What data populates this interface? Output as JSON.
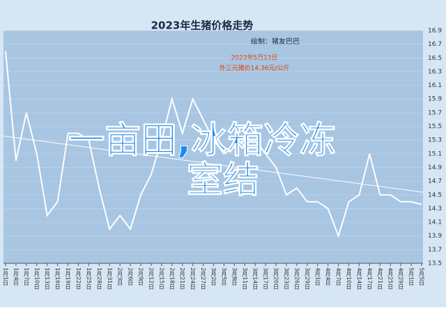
{
  "chart_data": {
    "type": "line",
    "title": "2023年生猪价格走势",
    "subtitle": "绘制：猪友巴巴",
    "annotation": [
      "2023年5月13日",
      "外三元猪价14.36元/公斤"
    ],
    "overlay": [
      "一亩田,冰箱冷冻",
      "室结"
    ],
    "categories": [
      "1月1日",
      "1月4日",
      "1月7日",
      "1月10日",
      "1月13日",
      "1月16日",
      "1月19日",
      "1月22日",
      "1月25日",
      "1月28日",
      "1月31日",
      "2月3日",
      "2月6日",
      "2月9日",
      "2月12日",
      "2月15日",
      "2月18日",
      "2月21日",
      "2月24日",
      "2月27日",
      "3月2日",
      "3月5日",
      "3月8日",
      "3月11日",
      "3月14日",
      "3月17日",
      "3月20日",
      "3月23日",
      "3月26日",
      "3月29日",
      "4月1日",
      "4月4日",
      "4月7日",
      "4月10日",
      "4月14日",
      "4月17日",
      "4月21日",
      "4月25日",
      "4月29日",
      "5月1日",
      "5月5日"
    ],
    "values": [
      16.6,
      15.0,
      15.7,
      15.1,
      14.2,
      14.4,
      15.4,
      15.4,
      15.3,
      14.6,
      14.0,
      14.2,
      14.0,
      14.5,
      14.8,
      15.3,
      15.9,
      15.4,
      15.9,
      15.6,
      15.3,
      15.1,
      15.2,
      15.3,
      15.3,
      15.1,
      14.9,
      14.5,
      14.6,
      14.4,
      14.4,
      14.3,
      13.9,
      14.4,
      14.5,
      15.1,
      14.5,
      14.5,
      14.4,
      14.4,
      14.36
    ],
    "trend": [
      15.36,
      14.54
    ],
    "color": "#ffffff",
    "ylim": [
      13.5,
      16.9
    ],
    "yticks": [
      13.5,
      13.7,
      13.9,
      14.1,
      14.3,
      14.5,
      14.7,
      14.9,
      15.1,
      15.3,
      15.5,
      15.7,
      15.9,
      16.1,
      16.3,
      16.5,
      16.7,
      16.9
    ],
    "grid": true
  }
}
